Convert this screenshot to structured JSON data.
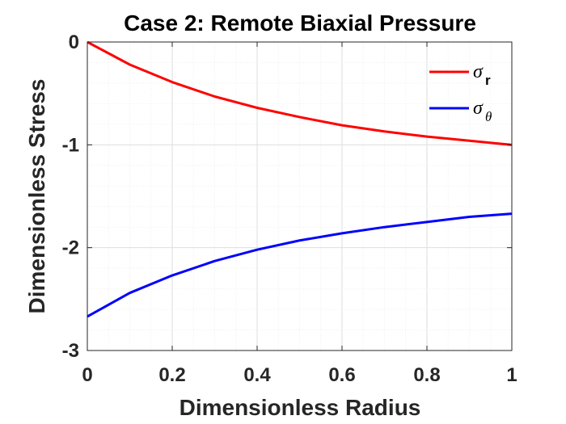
{
  "chart_data": {
    "type": "line",
    "title": "Case 2: Remote Biaxial Pressure",
    "xlabel": "Dimensionless Radius",
    "ylabel": "Dimensionless Stress",
    "xlim": [
      0,
      1
    ],
    "ylim": [
      -3,
      0
    ],
    "xticks": [
      0,
      0.2,
      0.4,
      0.6,
      0.8,
      1
    ],
    "xtick_labels": [
      "0",
      "0.2",
      "0.4",
      "0.6",
      "0.8",
      "1"
    ],
    "yticks": [
      0,
      -1,
      -2,
      -3
    ],
    "ytick_labels": [
      "0",
      "-1",
      "-2",
      "-3"
    ],
    "grid": true,
    "minor_grid": true,
    "legend_position": "top-right",
    "x": [
      0,
      0.1,
      0.2,
      0.3,
      0.4,
      0.5,
      0.6,
      0.7,
      0.8,
      0.9,
      1.0
    ],
    "series": [
      {
        "name": "σr",
        "legend_symbol": "σ",
        "legend_subscript": "r",
        "color": "#ff0000",
        "values": [
          0,
          -0.22,
          -0.39,
          -0.53,
          -0.64,
          -0.73,
          -0.81,
          -0.87,
          -0.92,
          -0.96,
          -1.0
        ]
      },
      {
        "name": "σθ",
        "legend_symbol": "σ",
        "legend_subscript": "θ",
        "color": "#0000ff",
        "values": [
          -2.67,
          -2.44,
          -2.27,
          -2.13,
          -2.02,
          -1.93,
          -1.86,
          -1.8,
          -1.75,
          -1.7,
          -1.67
        ]
      }
    ]
  }
}
